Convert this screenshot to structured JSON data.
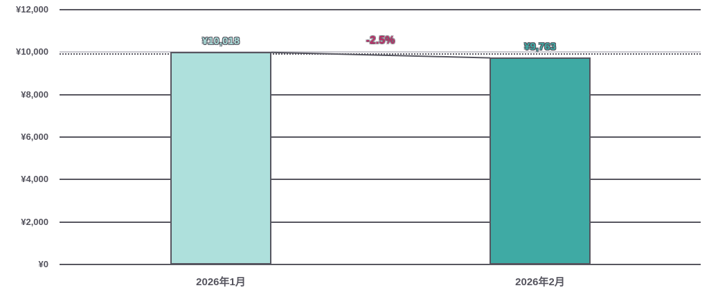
{
  "chart_data": {
    "type": "bar",
    "title": "",
    "categories": [
      "2026年1月",
      "2026年2月"
    ],
    "values": [
      10018,
      9763
    ],
    "value_labels": [
      "¥10,018",
      "¥9,763"
    ],
    "change_label": "-2.5%",
    "change_percent": -2.5,
    "ylim": [
      0,
      12000
    ],
    "yticks": {
      "values": [
        0,
        2000,
        4000,
        6000,
        8000,
        10000,
        12000
      ],
      "labels": [
        "¥0",
        "¥2,000",
        "¥4,000",
        "¥6,000",
        "¥8,000",
        "¥10,000",
        "¥12,000"
      ]
    },
    "reference_line": {
      "value": 10000,
      "style": "dotted"
    },
    "grid": true,
    "legend": false,
    "colors": {
      "bar_fills": [
        "#aee0dc",
        "#3faaa4"
      ],
      "bar_border": "#56555f",
      "grid_dark": "#57565f",
      "grid_light_at_10000": "#c8c7ce",
      "axis_text": "#55545e",
      "change_label": "#bf2e68"
    }
  }
}
